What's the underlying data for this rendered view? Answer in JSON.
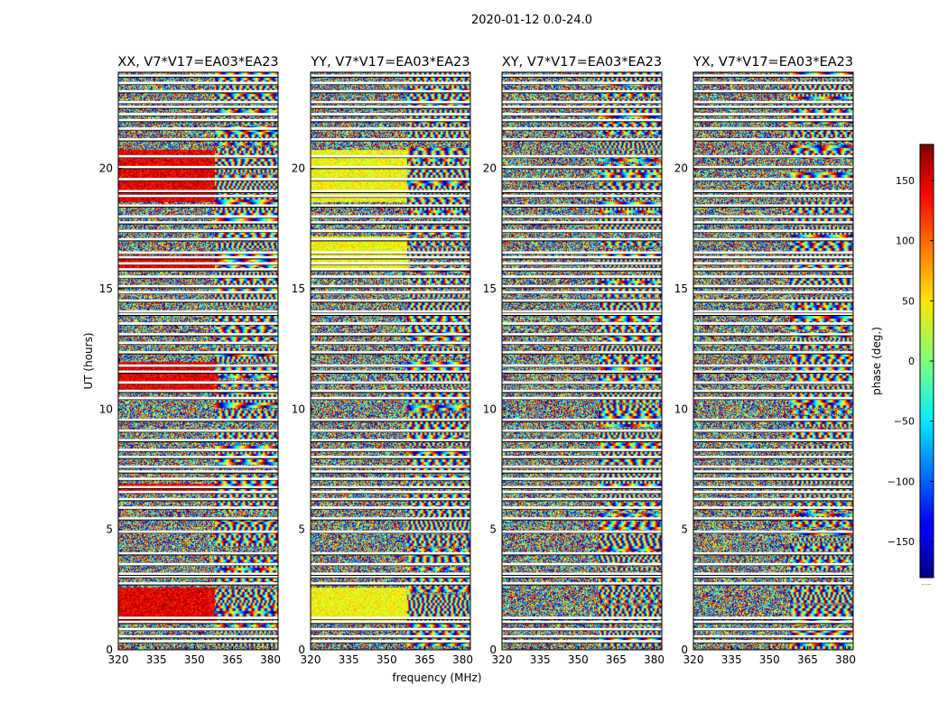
{
  "chart_data": {
    "type": "heatmap",
    "title": "2020-01-12 0.0-24.0",
    "xlabel": "frequency (MHz)",
    "ylabel": "UT (hours)",
    "xlim": [
      320,
      383
    ],
    "ylim": [
      0,
      24
    ],
    "xticks": [
      320,
      335,
      350,
      365,
      380
    ],
    "yticks": [
      0,
      5,
      10,
      15,
      20
    ],
    "panels": [
      {
        "title": "XX, V7*V17=EA03*EA23",
        "polarization": "XX"
      },
      {
        "title": "YY, V7*V17=EA03*EA23",
        "polarization": "YY"
      },
      {
        "title": "XY, V7*V17=EA03*EA23",
        "polarization": "XY"
      },
      {
        "title": "YX, V7*V17=EA03*EA23",
        "polarization": "YX"
      }
    ],
    "colorbar": {
      "label": "phase (deg.)",
      "range": [
        -180,
        180
      ],
      "ticks": [
        -150,
        -100,
        -50,
        0,
        50,
        100,
        150
      ],
      "colormap": "jet",
      "end_label": "......"
    },
    "gaps_hours": [
      0.35,
      0.55,
      0.85,
      1.15,
      1.32,
      2.75,
      3.05,
      3.15,
      3.55,
      4.0,
      4.9,
      5.45,
      5.9,
      6.25,
      6.55,
      6.75,
      7.1,
      7.4,
      7.6,
      8.0,
      8.3,
      8.7,
      9.1,
      9.55,
      10.45,
      10.75,
      11.1,
      11.55,
      11.8,
      12.35,
      12.75,
      13.1,
      13.55,
      13.95,
      14.05,
      14.5,
      14.85,
      15.1,
      15.5,
      15.8,
      16.05,
      16.3,
      16.5,
      17.05,
      17.4,
      17.75,
      18.0,
      18.45,
      18.85,
      19.05,
      19.55,
      20.05,
      20.5,
      21.2,
      21.65,
      22.0,
      22.25,
      22.55,
      22.75,
      23.2,
      23.55,
      23.85
    ]
  }
}
